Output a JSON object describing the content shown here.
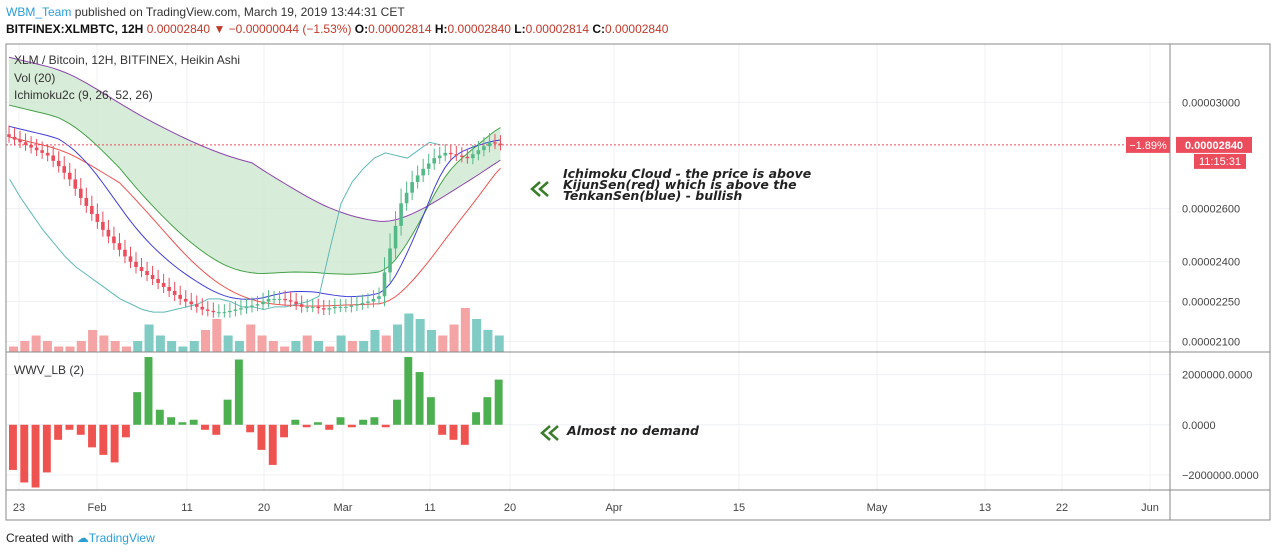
{
  "header": {
    "user": "WBM_Team",
    "published": "published on TradingView.com, March 19, 2019 13:44:31 CET",
    "symbol": "BITFINEX:XLMBTC, 12H",
    "price": "0.00002840",
    "change": "−0.00000044 (−1.53%)",
    "o_label": "O:",
    "o_value": "0.00002814",
    "h_label": "H:",
    "h_value": "0.00002840",
    "l_label": "L:",
    "l_value": "0.00002814",
    "c_label": "C:",
    "c_value": "0.00002840"
  },
  "legend": {
    "title": "XLM / Bitcoin, 12H, BITFINEX, Heikin Ashi",
    "vol": "Vol (20)",
    "ichimoku": "Ichimoku2c (9, 26, 52, 26)",
    "wwv": "WWV_LB (2)"
  },
  "annotations": {
    "cloud_lines": [
      "Ichimoku Cloud - the price is above",
      "KijunSen(red) which is above the",
      "TenkanSen(blue) - bullish"
    ],
    "demand": "Almost no demand"
  },
  "price_axis": {
    "labels": [
      "0.00003000",
      "0.00002600",
      "0.00002400",
      "0.00002250",
      "0.00002100"
    ],
    "last_price": "0.00002840",
    "pct_change": "−1.89%",
    "countdown": "11:15:31"
  },
  "wwv_axis": {
    "labels": [
      "2000000.0000",
      "0.0000",
      "−2000000.0000"
    ]
  },
  "time_axis": {
    "labels": [
      "23",
      "Feb",
      "11",
      "20",
      "Mar",
      "11",
      "20",
      "Apr",
      "15",
      "May",
      "13",
      "22",
      "Jun"
    ]
  },
  "footer": {
    "created": "Created with",
    "brand": "TradingView"
  },
  "colors": {
    "up": "#53b987",
    "down": "#eb4d5c",
    "kijun": "#ef5350",
    "tenkan": "#3f3fd8",
    "chikou": "#5fb8b8",
    "cloud_fill": "#c8e6c9",
    "span_a": "#43a047",
    "span_b": "#8e44ad",
    "wwv_up": "#4caf50",
    "wwv_down": "#ef5350",
    "vol_up": "#80cbc4",
    "vol_down": "#f4a4a4"
  },
  "chart_data": [
    {
      "type": "candlestick",
      "title": "XLM / Bitcoin, 12H, BITFINEX, Heikin Ashi",
      "ylim": [
        2.06e-05,
        3.22e-05
      ],
      "y_ticks": [
        3e-05,
        2.6e-05,
        2.4e-05,
        2.25e-05,
        2.1e-05
      ],
      "series": [
        {
          "name": "Heikin Ashi close",
          "values": [
            2.86e-05,
            2.84e-05,
            2.82e-05,
            2.8e-05,
            2.76e-05,
            2.71e-05,
            2.64e-05,
            2.58e-05,
            2.52e-05,
            2.47e-05,
            2.42e-05,
            2.38e-05,
            2.35e-05,
            2.32e-05,
            2.29e-05,
            2.26e-05,
            2.24e-05,
            2.22e-05,
            2.21e-05,
            2.21e-05,
            2.22e-05,
            2.23e-05,
            2.24e-05,
            2.26e-05,
            2.26e-05,
            2.25e-05,
            2.23e-05,
            2.23e-05,
            2.22e-05,
            2.23e-05,
            2.23e-05,
            2.24e-05,
            2.25e-05,
            2.27e-05,
            2.45e-05,
            2.62e-05,
            2.7e-05,
            2.75e-05,
            2.79e-05,
            2.81e-05,
            2.8e-05,
            2.79e-05,
            2.82e-05,
            2.85e-05,
            2.84e-05
          ]
        },
        {
          "name": "Ichimoku2c",
          "values": []
        }
      ]
    },
    {
      "type": "bar",
      "title": "WWV_LB (2)",
      "ylim": [
        -2600000,
        2900000
      ],
      "y_ticks": [
        2000000,
        0,
        -2000000
      ],
      "values": [
        -1800000,
        -2300000,
        -2500000,
        -1900000,
        -600000,
        -200000,
        -400000,
        -900000,
        -1200000,
        -1500000,
        -500000,
        1300000,
        2700000,
        600000,
        300000,
        100000,
        200000,
        -200000,
        -400000,
        1000000,
        2600000,
        -300000,
        -1000000,
        -1600000,
        -500000,
        200000,
        -100000,
        100000,
        -200000,
        300000,
        -100000,
        200000,
        300000,
        -100000,
        1000000,
        2700000,
        2100000,
        1100000,
        -400000,
        -600000,
        -800000,
        500000,
        1100000,
        1800000
      ]
    },
    {
      "type": "bar",
      "title": "Vol (20)",
      "values": [
        1,
        2,
        3,
        2,
        1,
        1,
        2,
        4,
        3,
        2,
        1,
        2,
        5,
        3,
        2,
        1,
        2,
        4,
        6,
        3,
        2,
        5,
        3,
        2,
        1,
        2,
        3,
        2,
        1,
        3,
        2,
        2,
        4,
        3,
        5,
        7,
        6,
        4,
        3,
        5,
        8,
        6,
        4,
        3
      ]
    }
  ]
}
